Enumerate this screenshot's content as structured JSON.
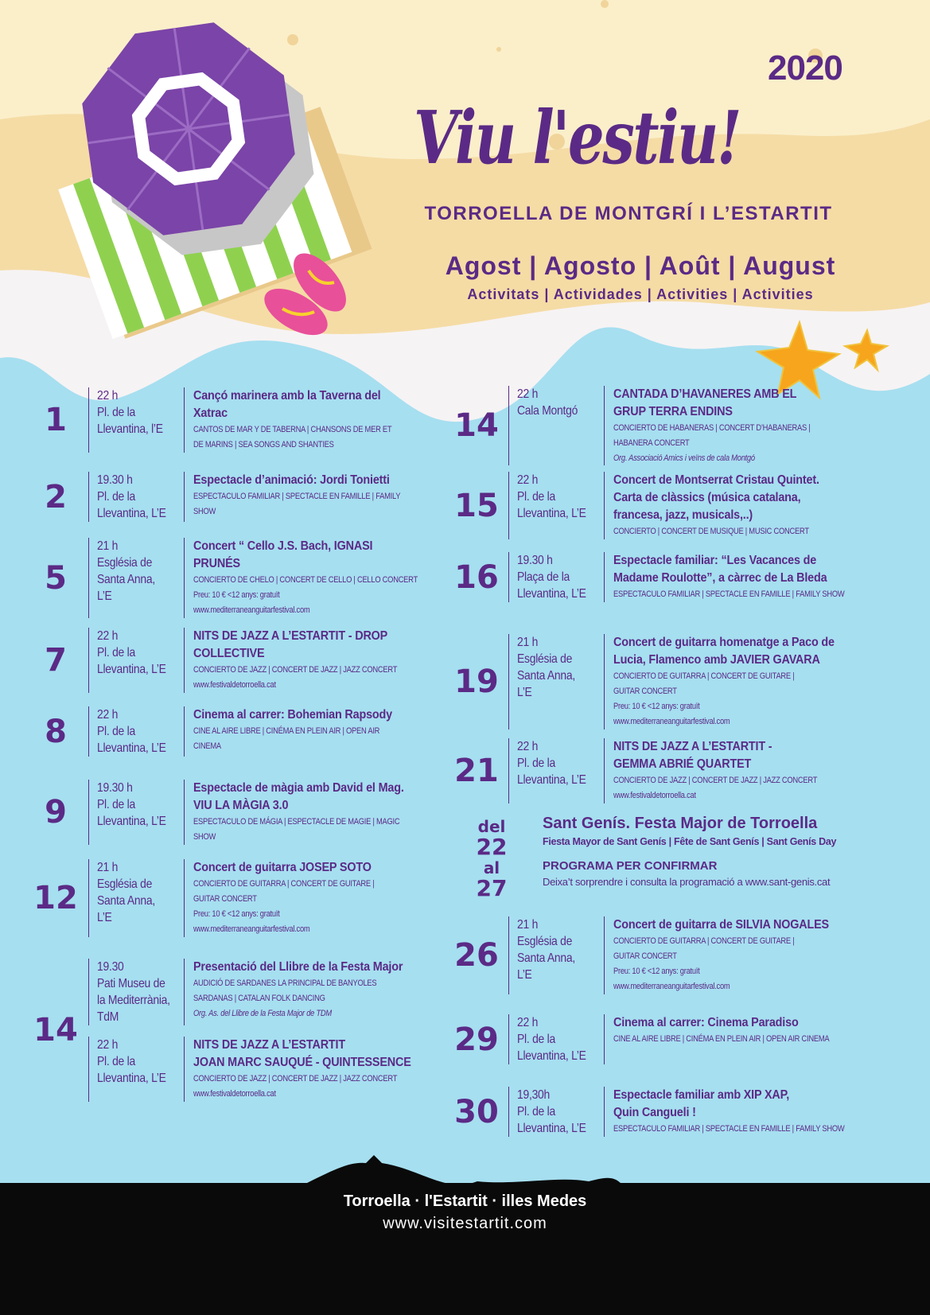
{
  "header": {
    "year": "2020",
    "title": "Viu l'estiu!",
    "subtitle": "TORROELLA DE MONTGRÍ I L’ESTARTIT",
    "months": "Agost | Agosto | Août | August",
    "activities": "Activitats | Actividades | Activities | Activities"
  },
  "colors": {
    "purple": "#5b2a86",
    "sea": "#a6dff0",
    "sand": "#f5dca5",
    "cream": "#fbefca",
    "pink": "#e8509a",
    "green": "#8fd14f",
    "star": "#f7a51c"
  },
  "left_events": [
    {
      "day": "1",
      "rows": [
        {
          "time": [
            "22 h",
            "Pl. de la",
            "Llevantina, l’E"
          ],
          "title": [
            "Cançó marinera amb la Taverna del",
            "Xatrac"
          ],
          "details": [
            "CANTOS DE MAR Y DE TABERNA | CHANSONS DE MER ET",
            "DE MARINS | SEA SONGS AND SHANTIES"
          ]
        }
      ]
    },
    {
      "day": "2",
      "rows": [
        {
          "time": [
            "19.30 h",
            "Pl. de la",
            "Llevantina, L’E"
          ],
          "title": [
            "Espectacle d’animació: Jordi Tonietti"
          ],
          "details": [
            "ESPECTACULO FAMILIAR | SPECTACLE EN FAMILLE | FAMILY",
            "SHOW"
          ]
        }
      ]
    },
    {
      "day": "5",
      "rows": [
        {
          "time": [
            "21 h",
            "Església de",
            "Santa Anna,",
            "L’E"
          ],
          "title": [
            "Concert “ Cello  J.S. Bach, IGNASI",
            "PRUNÉS"
          ],
          "details": [
            "CONCIERTO DE CHELO | CONCERT DE CELLO | CELLO CONCERT",
            "Preu: 10 € <12 anys: gratuït",
            "www.mediterraneanguitarfestival.com"
          ]
        }
      ]
    },
    {
      "day": "7",
      "rows": [
        {
          "time": [
            "22 h",
            "Pl. de la",
            "Llevantina, L’E"
          ],
          "title": [
            "NITS DE JAZZ A L’ESTARTIT - DROP",
            "COLLECTIVE"
          ],
          "details": [
            "CONCIERTO DE JAZZ | CONCERT DE JAZZ | JAZZ CONCERT",
            "www.festivaldetorroella.cat"
          ]
        }
      ]
    },
    {
      "day": "8",
      "rows": [
        {
          "time": [
            "22 h",
            "Pl. de la",
            "Llevantina, L’E"
          ],
          "title": [
            "Cinema al carrer: Bohemian Rapsody"
          ],
          "details": [
            "CINE AL AIRE LIBRE | CINÉMA EN PLEIN AIR | OPEN AIR",
            "CINEMA"
          ]
        }
      ]
    },
    {
      "day": "9",
      "rows": [
        {
          "time": [
            "19.30 h",
            "Pl. de la",
            "Llevantina, L’E"
          ],
          "title": [
            "Espectacle de màgia amb David el Mag.",
            "VIU LA MÀGIA 3.0"
          ],
          "details": [
            "ESPECTACULO DE MÁGIA | ESPECTACLE DE MAGIE | MAGIC",
            "SHOW"
          ]
        }
      ]
    },
    {
      "day": "12",
      "rows": [
        {
          "time": [
            "21 h",
            "Església de",
            "Santa Anna,",
            "L’E"
          ],
          "title": [
            "Concert de guitarra JOSEP SOTO"
          ],
          "details": [
            "CONCIERTO DE GUITARRA | CONCERT DE GUITARE |",
            "GUITAR CONCERT",
            "Preu: 10 € <12 anys: gratuït",
            "www.mediterraneanguitarfestival.com"
          ]
        }
      ]
    },
    {
      "day": "14",
      "rows": [
        {
          "time": [
            "19.30",
            "Pati Museu de",
            "la Mediterrània,",
            "TdM"
          ],
          "title": [
            "Presentació del Llibre de la Festa Major"
          ],
          "details": [
            "AUDICIÓ DE SARDANES  LA PRINCIPAL DE BANYOLES",
            "SARDANAS | CATALAN FOLK DANCING"
          ],
          "org": "Org. As. del Llibre de la Festa Major de TDM"
        },
        {
          "time": [
            "22 h",
            "Pl. de la",
            "Llevantina, L’E"
          ],
          "title": [
            "NITS DE JAZZ A L’ESTARTIT",
            "JOAN MARC SAUQUÉ - QUINTESSENCE"
          ],
          "details": [
            "CONCIERTO DE JAZZ | CONCERT DE JAZZ | JAZZ CONCERT",
            "www.festivaldetorroella.cat"
          ]
        }
      ]
    }
  ],
  "right_events": [
    {
      "day": "14",
      "rows": [
        {
          "time": [
            "22 h",
            "Cala Montgó"
          ],
          "title": [
            "CANTADA D’HAVANERES AMB EL",
            "GRUP TERRA ENDINS"
          ],
          "details": [
            "CONCIERTO DE HABANERAS | CONCERT D’HABANERAS |",
            "HABANERA CONCERT"
          ],
          "org": "Org. Associació Amics i veïns de cala Montgó"
        }
      ]
    },
    {
      "day": "15",
      "rows": [
        {
          "time": [
            "22 h",
            "Pl. de la",
            "Llevantina, L’E"
          ],
          "title": [
            "Concert de Montserrat Cristau Quintet.",
            "Carta de clàssics (música catalana,",
            "francesa, jazz, musicals,..)"
          ],
          "details": [
            "CONCIERTO | CONCERT DE MUSIQUE | MUSIC CONCERT"
          ]
        }
      ]
    },
    {
      "day": "16",
      "rows": [
        {
          "time": [
            "19.30 h",
            "Plaça de la",
            "Llevantina, L’E"
          ],
          "title": [
            "Espectacle familiar: “Les Vacances de",
            "Madame Roulotte”,  a càrrec de La Bleda"
          ],
          "details": [
            "ESPECTACULO FAMILIAR | SPECTACLE EN FAMILLE | FAMILY SHOW"
          ]
        }
      ]
    },
    {
      "day": "19",
      "rows": [
        {
          "time": [
            "21 h",
            "Església de",
            "Santa Anna,",
            "L’E"
          ],
          "title": [
            "Concert de guitarra homenatge a Paco de",
            "Lucia, Flamenco amb JAVIER GAVARA"
          ],
          "details": [
            "CONCIERTO DE GUITARRA | CONCERT DE GUITARE |",
            "GUITAR CONCERT",
            "Preu: 10 € <12 anys: gratuït",
            "www.mediterraneanguitarfestival.com"
          ]
        }
      ]
    },
    {
      "day": "21",
      "rows": [
        {
          "time": [
            "22 h",
            "Pl. de la",
            "Llevantina, L’E"
          ],
          "title": [
            "NITS DE JAZZ A L’ESTARTIT  -",
            "GEMMA ABRIÉ QUARTET"
          ],
          "details": [
            "CONCIERTO DE JAZZ | CONCERT DE JAZZ | JAZZ CONCERT",
            "www.festivaldetorroella.cat"
          ]
        }
      ]
    },
    {
      "day": "26",
      "rows": [
        {
          "time": [
            "21 h",
            "Església de",
            "Santa Anna,",
            "L’E"
          ],
          "title": [
            "Concert de guitarra de SILVIA NOGALES"
          ],
          "details": [
            "CONCIERTO DE GUITARRA | CONCERT DE GUITARE |",
            "GUITAR CONCERT",
            "Preu: 10 € <12 anys: gratuït",
            "www.mediterraneanguitarfestival.com"
          ]
        }
      ]
    },
    {
      "day": "29",
      "rows": [
        {
          "time": [
            "22 h",
            "Pl. de la",
            "Llevantina, L’E"
          ],
          "title": [
            "Cinema al carrer: Cinema Paradiso"
          ],
          "details": [
            "CINE AL AIRE LIBRE | CINÉMA EN PLEIN AIR | OPEN AIR CINEMA"
          ]
        }
      ]
    },
    {
      "day": "30",
      "rows": [
        {
          "time": [
            "19,30h",
            "Pl. de la",
            "Llevantina, L’E"
          ],
          "title": [
            "Espectacle familiar amb XIP XAP,",
            "Quin Cangueli !"
          ],
          "details": [
            "ESPECTACULO FAMILIAR | SPECTACLE EN FAMILLE | FAMILY SHOW"
          ]
        }
      ]
    }
  ],
  "festa_major": {
    "del": "del",
    "from": "22",
    "al": "al",
    "to": "27",
    "title": "Sant Genís. Festa Major de Torroella",
    "subtitle": "Fiesta Mayor de Sant Genís | Fête de Sant Genís | Sant Genís Day",
    "program": "PROGRAMA PER CONFIRMAR",
    "note": "Deixa’t sorprendre i consulta la programació a www.sant-genis.cat"
  },
  "footer": {
    "line1": "Torroella · l'Estartit · illes Medes",
    "line2": "www.visitestartit.com"
  }
}
